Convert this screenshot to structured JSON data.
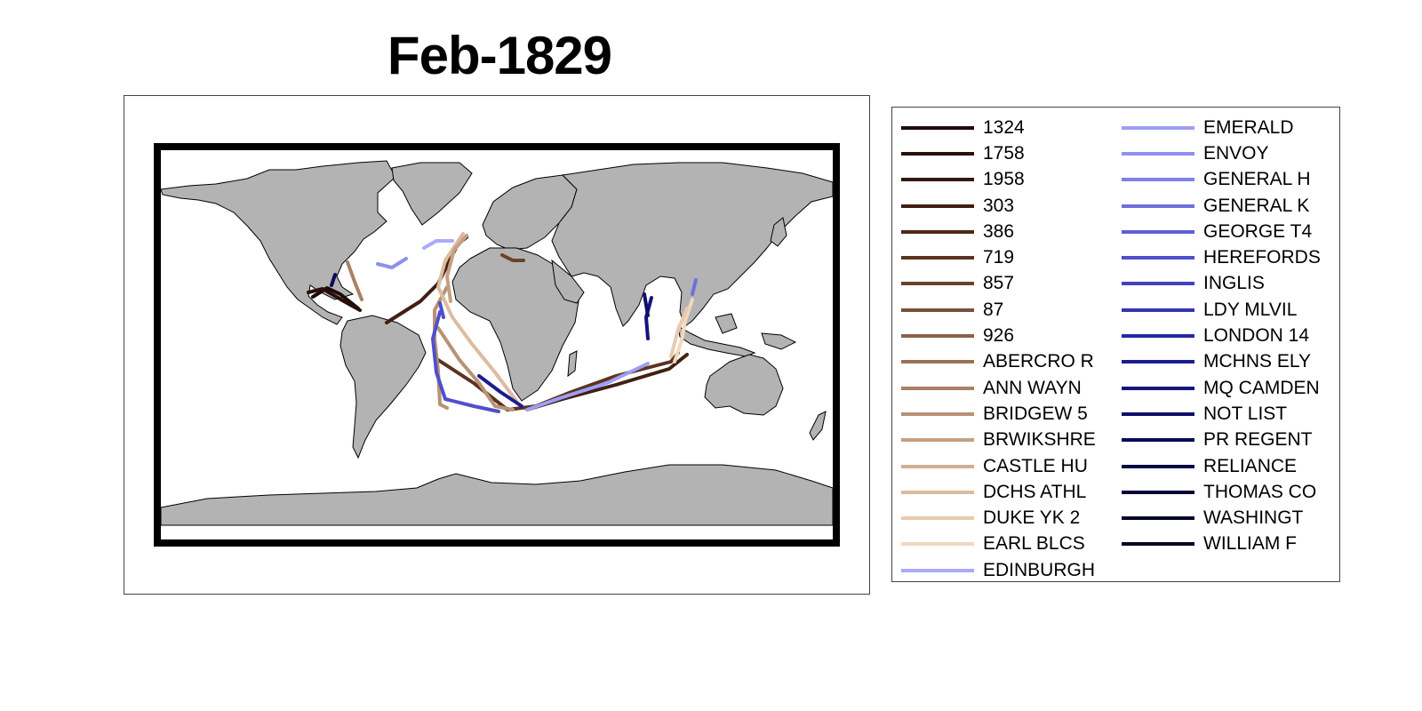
{
  "title": "Feb-1829",
  "colors": {
    "land": "#b3b3b3",
    "ocean": "#ffffff",
    "frame": "#000000"
  },
  "legend": [
    {
      "name": "1324",
      "color": "#1e0a08"
    },
    {
      "name": "1758",
      "color": "#2a100a"
    },
    {
      "name": "1958",
      "color": "#36170d"
    },
    {
      "name": "303",
      "color": "#421f12"
    },
    {
      "name": "386",
      "color": "#4f2818"
    },
    {
      "name": "719",
      "color": "#5c331f"
    },
    {
      "name": "857",
      "color": "#6b412b"
    },
    {
      "name": "87",
      "color": "#7a5039"
    },
    {
      "name": "926",
      "color": "#8a6148"
    },
    {
      "name": "ABERCRO R",
      "color": "#997157"
    },
    {
      "name": "ANN WAYN",
      "color": "#a88166"
    },
    {
      "name": "BRIDGEW 5",
      "color": "#b89275"
    },
    {
      "name": "BRWIKSHRE",
      "color": "#c4a083"
    },
    {
      "name": "CASTLE HU",
      "color": "#d1ae91"
    },
    {
      "name": "DCHS ATHL",
      "color": "#dcbc9f"
    },
    {
      "name": "DUKE YK 2",
      "color": "#e8caad"
    },
    {
      "name": "EARL BLCS",
      "color": "#f2d8bd"
    },
    {
      "name": "EDINBURGH",
      "color": "#aaaaff"
    },
    {
      "name": "EMERALD",
      "color": "#9e9ef7"
    },
    {
      "name": "ENVOY",
      "color": "#8f8ff0"
    },
    {
      "name": "GENERAL H",
      "color": "#8080e8"
    },
    {
      "name": "GENERAL K",
      "color": "#6f6fdf"
    },
    {
      "name": "GEORGE T4",
      "color": "#5f5fd6"
    },
    {
      "name": "HEREFORDS",
      "color": "#4f4fcc"
    },
    {
      "name": "INGLIS",
      "color": "#4242c0"
    },
    {
      "name": "LDY MLVIL",
      "color": "#3535b2"
    },
    {
      "name": "LONDON 14",
      "color": "#2828a3"
    },
    {
      "name": "MCHNS ELY",
      "color": "#1c1c91"
    },
    {
      "name": "MQ CAMDEN",
      "color": "#14147e"
    },
    {
      "name": "NOT LIST",
      "color": "#0e0e6a"
    },
    {
      "name": "PR REGENT",
      "color": "#0a0a58"
    },
    {
      "name": "RELIANCE",
      "color": "#070747"
    },
    {
      "name": "THOMAS CO",
      "color": "#050538"
    },
    {
      "name": "WASHINGT",
      "color": "#04042c"
    },
    {
      "name": "WILLIAM F",
      "color": "#030322"
    }
  ]
}
